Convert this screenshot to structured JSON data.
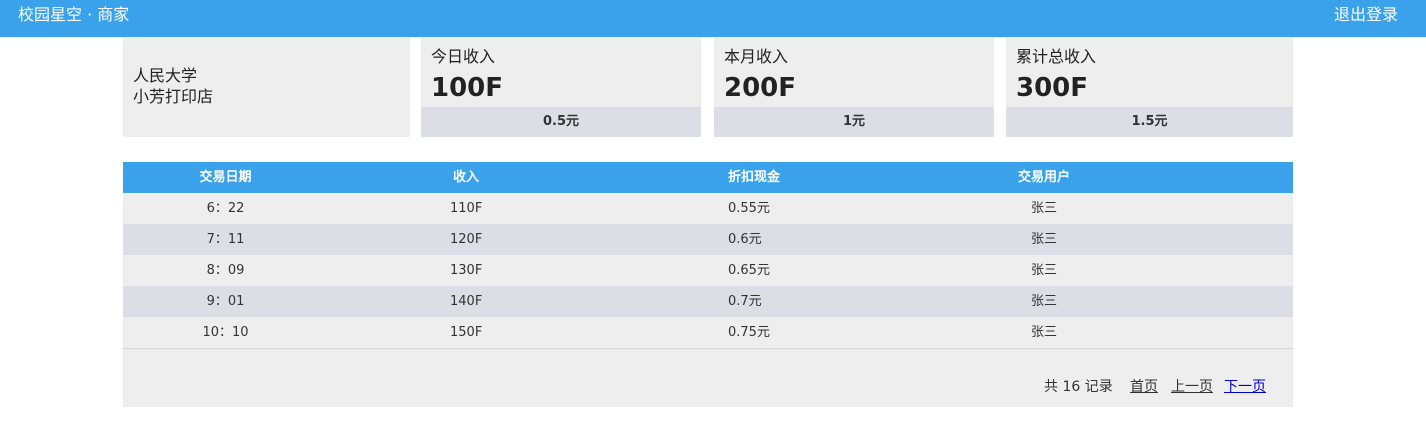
{
  "header": {
    "brand": "校园星空 · 商家",
    "logout_label": "退出登录"
  },
  "store": {
    "school": "人民大学",
    "shop": "小芳打印店"
  },
  "stats": [
    {
      "title": "今日收入",
      "value": "100F",
      "cash": "0.5元"
    },
    {
      "title": "本月收入",
      "value": "200F",
      "cash": "1元"
    },
    {
      "title": "累计总收入",
      "value": "300F",
      "cash": "1.5元"
    }
  ],
  "table": {
    "columns": [
      "交易日期",
      "收入",
      "折扣现金",
      "交易用户"
    ],
    "rows": [
      [
        "6：22",
        "110F",
        "0.55元",
        "张三"
      ],
      [
        "7：11",
        "120F",
        "0.6元",
        "张三"
      ],
      [
        "8：09",
        "130F",
        "0.65元",
        "张三"
      ],
      [
        "9：01",
        "140F",
        "0.7元",
        "张三"
      ],
      [
        "10：10",
        "150F",
        "0.75元",
        "张三"
      ]
    ]
  },
  "pagination": {
    "total_text": "共 16 记录",
    "first_label": "首页",
    "prev_label": "上一页",
    "next_label": "下一页"
  },
  "colors": {
    "accent": "#3aa2ea",
    "panel": "#eeeeee",
    "stripe": "#dddde6"
  }
}
